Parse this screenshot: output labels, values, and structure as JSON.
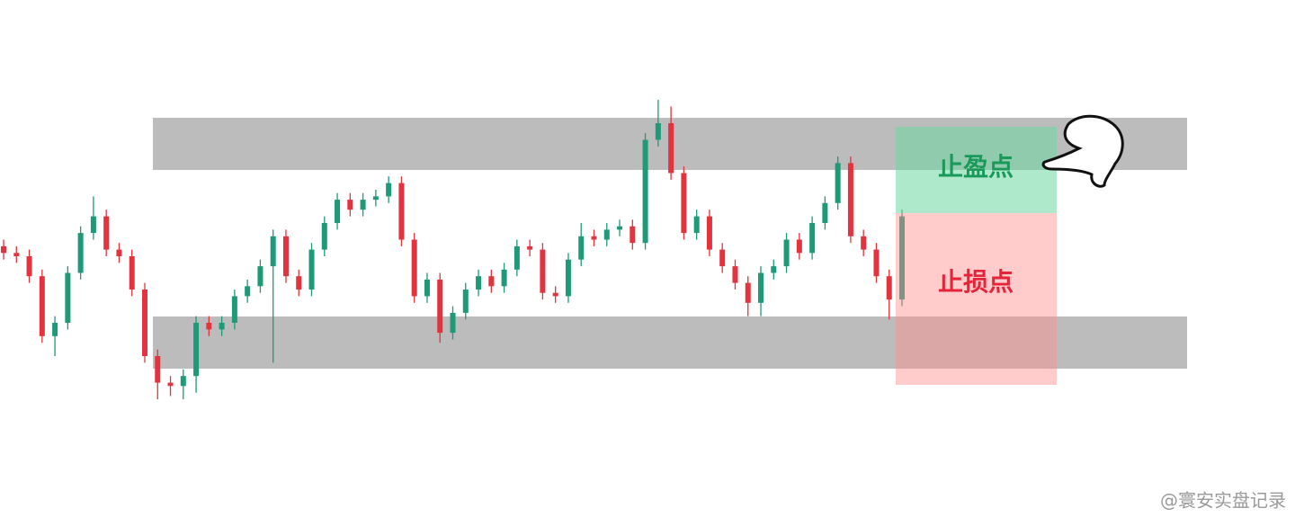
{
  "chart_data": {
    "type": "candlestick",
    "ylim": [
      0,
      100
    ],
    "up_color": "#1e9a78",
    "down_color": "#e2333f",
    "open": [
      53,
      51,
      50,
      44,
      26,
      30,
      45,
      57,
      62,
      52,
      50,
      40,
      20,
      12,
      11,
      14,
      30,
      28,
      30,
      38,
      41,
      47,
      56,
      44,
      40,
      52,
      60,
      67,
      64,
      67,
      68,
      72,
      55,
      38,
      43,
      27,
      33,
      40,
      44,
      41,
      46,
      53,
      52,
      39,
      38,
      49,
      56,
      55,
      58,
      59,
      54,
      85,
      90,
      75,
      57,
      62,
      52,
      47,
      42,
      36,
      45,
      47,
      55,
      51,
      60,
      66,
      78,
      56,
      52,
      44,
      37
    ],
    "high": [
      55,
      53,
      52,
      46,
      32,
      47,
      59,
      68,
      64,
      54,
      52,
      42,
      22,
      14,
      16,
      32,
      32,
      32,
      40,
      43,
      49,
      58,
      58,
      46,
      54,
      62,
      69,
      69,
      69,
      70,
      74,
      74,
      57,
      45,
      45,
      35,
      42,
      46,
      46,
      48,
      55,
      55,
      54,
      41,
      51,
      60,
      58,
      60,
      61,
      61,
      87,
      97,
      95,
      77,
      64,
      64,
      54,
      49,
      44,
      47,
      49,
      57,
      57,
      62,
      68,
      80,
      80,
      58,
      54,
      46,
      64
    ],
    "low": [
      49,
      48,
      42,
      24,
      20,
      28,
      43,
      55,
      50,
      48,
      38,
      18,
      7,
      8,
      7,
      9,
      26,
      26,
      28,
      36,
      39,
      18,
      42,
      38,
      38,
      50,
      58,
      62,
      62,
      65,
      66,
      53,
      36,
      36,
      24,
      25,
      31,
      38,
      39,
      39,
      44,
      50,
      37,
      36,
      36,
      47,
      53,
      53,
      56,
      52,
      52,
      83,
      73,
      55,
      55,
      50,
      45,
      40,
      32,
      32,
      43,
      45,
      49,
      49,
      58,
      64,
      54,
      50,
      42,
      31,
      35
    ],
    "close": [
      51,
      50,
      44,
      26,
      30,
      45,
      57,
      62,
      52,
      50,
      40,
      20,
      12,
      11,
      14,
      30,
      28,
      30,
      38,
      41,
      47,
      56,
      44,
      40,
      52,
      60,
      67,
      64,
      67,
      68,
      72,
      55,
      38,
      43,
      27,
      33,
      40,
      44,
      41,
      46,
      53,
      52,
      39,
      38,
      49,
      56,
      55,
      58,
      59,
      54,
      85,
      90,
      75,
      57,
      62,
      52,
      47,
      42,
      36,
      45,
      47,
      55,
      51,
      60,
      66,
      78,
      56,
      52,
      44,
      37,
      62
    ],
    "take_profit_label": "止盈点",
    "stop_loss_label": "止损点",
    "watermark": "@寰安实盘记录"
  }
}
